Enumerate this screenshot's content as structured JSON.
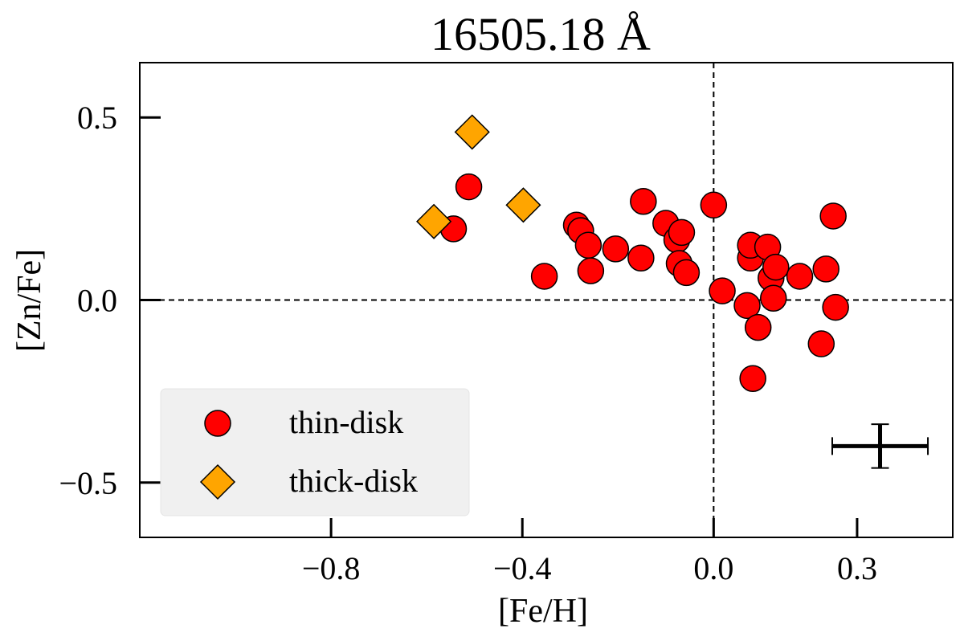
{
  "chart_data": {
    "type": "scatter",
    "title": "16505.18 Å",
    "xlabel": "[Fe/H]",
    "ylabel": "[Zn/Fe]",
    "xlim": [
      -1.2,
      0.5
    ],
    "ylim": [
      -0.65,
      0.65
    ],
    "xticks": [
      -0.8,
      -0.4,
      0.0,
      0.3
    ],
    "xtick_labels": [
      "−0.8",
      "−0.4",
      "0.0",
      "0.3"
    ],
    "yticks": [
      0.5,
      0.0,
      -0.5
    ],
    "ytick_labels": [
      "0.5",
      "0.0",
      "−0.5"
    ],
    "reference_lines": {
      "x": 0.0,
      "y": 0.0,
      "style": "dashed"
    },
    "legend": {
      "position": "lower-left"
    },
    "series": [
      {
        "name": "thin-disk",
        "marker": "circle",
        "color": "#ff0000",
        "points": [
          {
            "x": -0.544,
            "y": 0.195
          },
          {
            "x": -0.512,
            "y": 0.31
          },
          {
            "x": -0.354,
            "y": 0.065
          },
          {
            "x": -0.287,
            "y": 0.205
          },
          {
            "x": -0.278,
            "y": 0.19
          },
          {
            "x": -0.262,
            "y": 0.15
          },
          {
            "x": -0.257,
            "y": 0.08
          },
          {
            "x": -0.205,
            "y": 0.14
          },
          {
            "x": -0.152,
            "y": 0.115
          },
          {
            "x": -0.147,
            "y": 0.27
          },
          {
            "x": -0.1,
            "y": 0.21
          },
          {
            "x": -0.077,
            "y": 0.165
          },
          {
            "x": -0.072,
            "y": 0.1
          },
          {
            "x": -0.067,
            "y": 0.185
          },
          {
            "x": -0.057,
            "y": 0.075
          },
          {
            "x": 0.0,
            "y": 0.26
          },
          {
            "x": 0.018,
            "y": 0.025
          },
          {
            "x": 0.07,
            "y": -0.015
          },
          {
            "x": 0.077,
            "y": 0.115
          },
          {
            "x": 0.077,
            "y": 0.15
          },
          {
            "x": 0.082,
            "y": -0.215
          },
          {
            "x": 0.093,
            "y": -0.075
          },
          {
            "x": 0.113,
            "y": 0.145
          },
          {
            "x": 0.12,
            "y": 0.06
          },
          {
            "x": 0.125,
            "y": 0.005
          },
          {
            "x": 0.13,
            "y": 0.09
          },
          {
            "x": 0.18,
            "y": 0.065
          },
          {
            "x": 0.225,
            "y": -0.12
          },
          {
            "x": 0.235,
            "y": 0.085
          },
          {
            "x": 0.25,
            "y": 0.23
          },
          {
            "x": 0.255,
            "y": -0.02
          }
        ]
      },
      {
        "name": "thick-disk",
        "marker": "diamond",
        "color": "#ffa500",
        "points": [
          {
            "x": -0.585,
            "y": 0.215
          },
          {
            "x": -0.505,
            "y": 0.46
          },
          {
            "x": -0.398,
            "y": 0.26
          }
        ]
      }
    ],
    "error_bar": {
      "x": 0.348,
      "y": -0.4,
      "xerr": 0.1,
      "yerr": 0.06
    }
  }
}
